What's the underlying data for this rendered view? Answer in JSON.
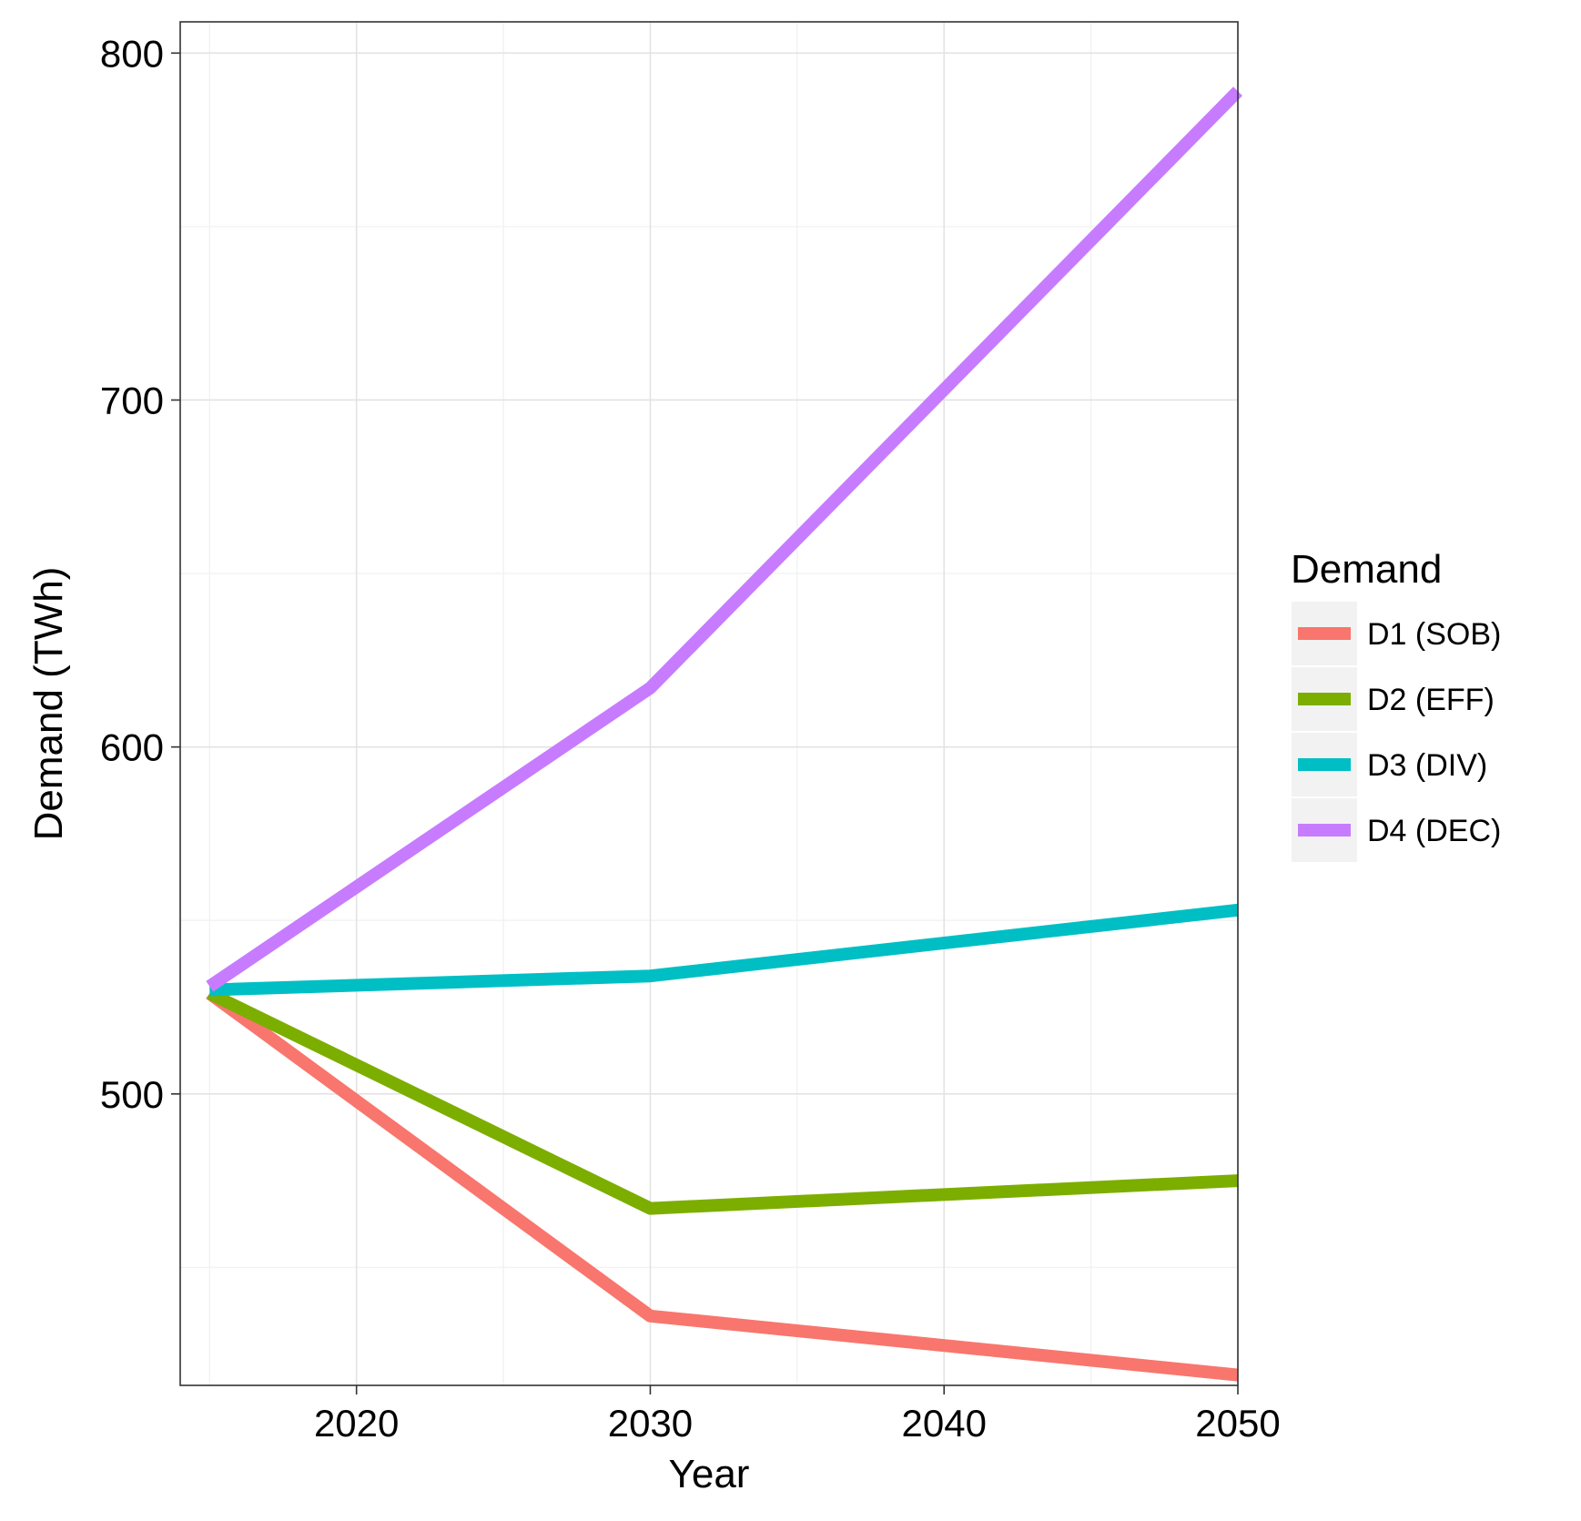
{
  "chart_data": {
    "type": "line",
    "title": "",
    "xlabel": "Year",
    "ylabel": "Demand (TWh)",
    "xlim": [
      2014,
      2050
    ],
    "ylim": [
      416,
      809
    ],
    "x_ticks": [
      2020,
      2030,
      2040,
      2050
    ],
    "x_ticks_minor": [
      2015,
      2025,
      2035,
      2045
    ],
    "y_ticks": [
      500,
      600,
      700,
      800
    ],
    "y_ticks_minor": [
      450,
      550,
      650,
      750
    ],
    "grid": true,
    "legend": {
      "title": "Demand",
      "placement": "right"
    },
    "series": [
      {
        "name": "D1 (SOB)",
        "color": "#F8766D",
        "x": [
          2015,
          2030,
          2050
        ],
        "y": [
          529,
          436,
          419
        ]
      },
      {
        "name": "D2 (EFF)",
        "color": "#7CAE00",
        "x": [
          2015,
          2030,
          2050
        ],
        "y": [
          529,
          467,
          475
        ]
      },
      {
        "name": "D3 (DIV)",
        "color": "#00BFC4",
        "x": [
          2015,
          2030,
          2050
        ],
        "y": [
          530,
          534,
          553
        ]
      },
      {
        "name": "D4 (DEC)",
        "color": "#C77CFF",
        "x": [
          2015,
          2030,
          2050
        ],
        "y": [
          531,
          617,
          789
        ]
      }
    ]
  }
}
